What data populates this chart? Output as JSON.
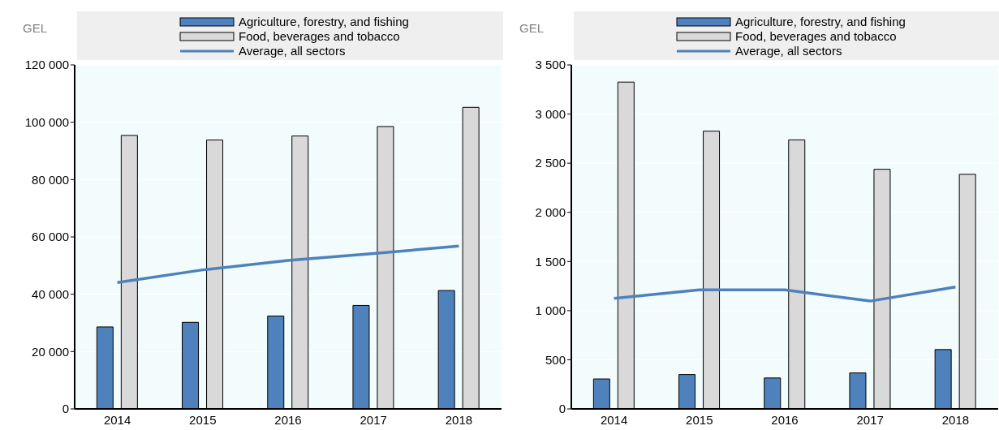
{
  "chart_data": [
    {
      "type": "bar",
      "ylabel": "GEL",
      "categories": [
        "2014",
        "2015",
        "2016",
        "2017",
        "2018"
      ],
      "series": [
        {
          "name": "Agriculture, forestry, and fishing",
          "color": "#4f81bd",
          "values": [
            28600,
            30200,
            32400,
            36100,
            41300
          ]
        },
        {
          "name": "Food, beverages and tobacco",
          "color": "#d9d9d9",
          "values": [
            95400,
            93800,
            95200,
            98500,
            105200
          ]
        },
        {
          "name": "Average, all sectors",
          "type": "line",
          "color": "#4f81bd",
          "values": [
            44100,
            48500,
            51800,
            54200,
            56800
          ]
        }
      ],
      "ylim": [
        0,
        120000
      ],
      "yticks": [
        {
          "value": 0,
          "label": "0"
        },
        {
          "value": 20000,
          "label": "20 000"
        },
        {
          "value": 40000,
          "label": "40 000"
        },
        {
          "value": 60000,
          "label": "60 000"
        },
        {
          "value": 80000,
          "label": "80 000"
        },
        {
          "value": 100000,
          "label": "100 000"
        },
        {
          "value": 120000,
          "label": "120 000"
        }
      ],
      "grid": "y",
      "legend": "top",
      "marker": "none"
    },
    {
      "type": "bar",
      "ylabel": "GEL",
      "categories": [
        "2014",
        "2015",
        "2016",
        "2017",
        "2018"
      ],
      "series": [
        {
          "name": "Agriculture, forestry, and fishing",
          "color": "#4f81bd",
          "values": [
            305,
            350,
            315,
            366,
            604
          ]
        },
        {
          "name": "Food, beverages and tobacco",
          "color": "#d9d9d9",
          "values": [
            3325,
            2826,
            2737,
            2438,
            2387
          ]
        },
        {
          "name": "Average, all sectors",
          "type": "line",
          "color": "#4f81bd",
          "values": [
            1125,
            1211,
            1211,
            1097,
            1240
          ]
        }
      ],
      "ylim": [
        0,
        3500
      ],
      "yticks": [
        {
          "value": 0,
          "label": "0"
        },
        {
          "value": 500,
          "label": "500"
        },
        {
          "value": 1000,
          "label": "1 000"
        },
        {
          "value": 1500,
          "label": "1 500"
        },
        {
          "value": 2000,
          "label": "2 000"
        },
        {
          "value": 2500,
          "label": "2 500"
        },
        {
          "value": 3000,
          "label": "3 000"
        },
        {
          "value": 3500,
          "label": "3 500"
        }
      ],
      "grid": "y",
      "legend": "top",
      "marker": "none"
    }
  ]
}
